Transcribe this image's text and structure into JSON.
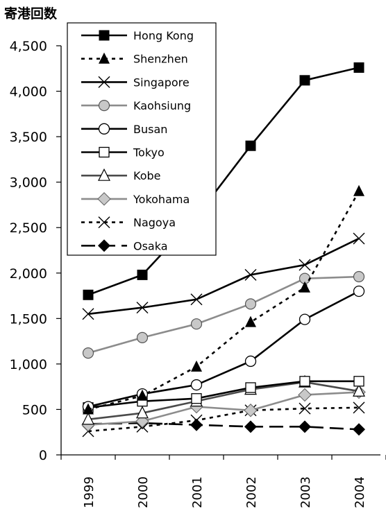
{
  "chart_data": {
    "type": "line",
    "ylabel": "寄港回数",
    "xlabel": "",
    "categories": [
      "1999",
      "2000",
      "2001",
      "2002",
      "2003",
      "2004"
    ],
    "ylim": [
      0,
      4500
    ],
    "yticks": [
      0,
      500,
      1000,
      1500,
      2000,
      2500,
      3000,
      3500,
      4000,
      4500
    ],
    "ytick_labels": [
      "0",
      "500",
      "1,000",
      "1,500",
      "2,000",
      "2,500",
      "3,000",
      "3,500",
      "4,000",
      "4,500"
    ],
    "grid": false,
    "legend_position": "top-left, inside plot",
    "series": [
      {
        "name": "Hong Kong",
        "values": [
          1760,
          1980,
          2620,
          3400,
          4120,
          4260
        ],
        "color": "#000000",
        "dash": "solid",
        "marker": "square-filled"
      },
      {
        "name": "Shenzhen",
        "values": [
          500,
          650,
          970,
          1460,
          1840,
          2900
        ],
        "color": "#000000",
        "dash": "dotted",
        "marker": "triangle-filled"
      },
      {
        "name": "Singapore",
        "values": [
          1550,
          1620,
          1710,
          1980,
          2090,
          2380
        ],
        "color": "#000000",
        "dash": "solid",
        "marker": "x"
      },
      {
        "name": "Kaohsiung",
        "values": [
          1120,
          1290,
          1440,
          1660,
          1940,
          1960
        ],
        "color": "#8c8c8c",
        "dash": "solid",
        "marker": "circle-gray"
      },
      {
        "name": "Busan",
        "values": [
          530,
          670,
          770,
          1030,
          1490,
          1800
        ],
        "color": "#000000",
        "dash": "solid",
        "marker": "circle-open"
      },
      {
        "name": "Tokyo",
        "values": [
          520,
          590,
          620,
          740,
          810,
          810
        ],
        "color": "#000000",
        "dash": "solid",
        "marker": "square-open"
      },
      {
        "name": "Kobe",
        "values": [
          390,
          460,
          590,
          720,
          800,
          700
        ],
        "color": "#4a4a4a",
        "dash": "solid",
        "marker": "triangle-open"
      },
      {
        "name": "Yokohama",
        "values": [
          330,
          370,
          530,
          490,
          660,
          690
        ],
        "color": "#8c8c8c",
        "dash": "solid",
        "marker": "diamond-gray"
      },
      {
        "name": "Nagoya",
        "values": [
          260,
          310,
          380,
          490,
          510,
          520
        ],
        "color": "#000000",
        "dash": "dotted",
        "marker": "x"
      },
      {
        "name": "Osaka",
        "values": [
          340,
          350,
          330,
          310,
          310,
          280
        ],
        "color": "#000000",
        "dash": "longdash",
        "marker": "diamond-filled"
      }
    ]
  }
}
